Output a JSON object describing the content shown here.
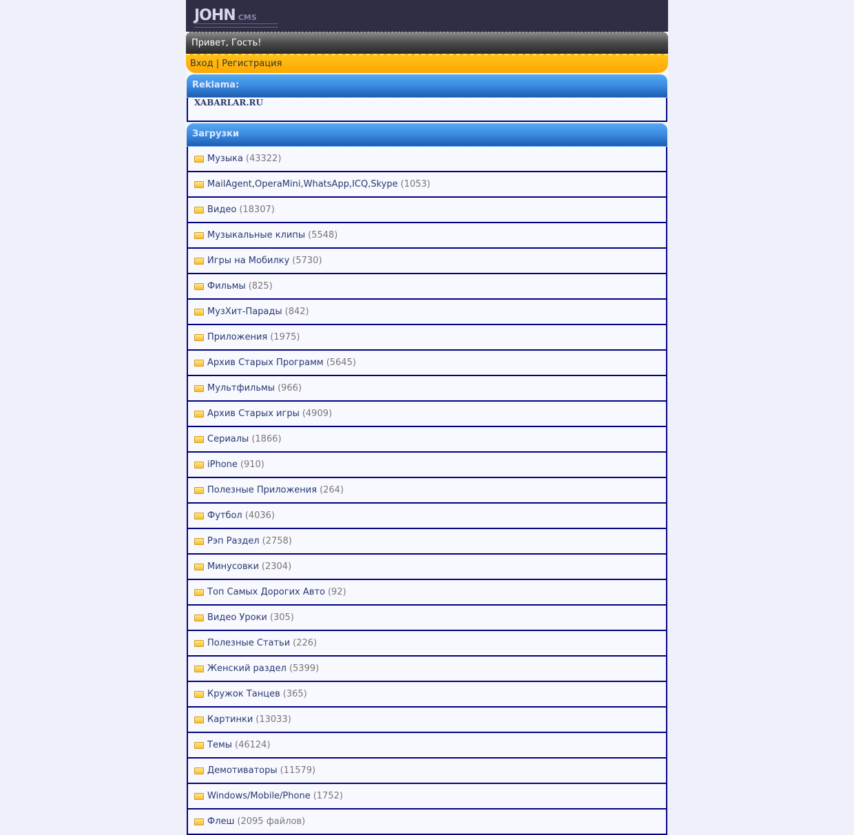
{
  "logo": {
    "text": "JOHN",
    "sub": "CMS"
  },
  "greeting": "Привет, Гость!",
  "auth": {
    "login": "Вход",
    "sep": " | ",
    "register": "Регистрация"
  },
  "ads": {
    "title": "Reklama:",
    "link": "XABARLAR.RU"
  },
  "downloads": {
    "title": "Загрузки",
    "icon": "folder-icon",
    "items": [
      {
        "label": "Музыка",
        "count": "(43322)"
      },
      {
        "label": "MailAgent,OperaMini,WhatsApp,ICQ,Skype",
        "count": "(1053)"
      },
      {
        "label": "Видео",
        "count": "(18307)"
      },
      {
        "label": "Музыкальные клипы",
        "count": "(5548)"
      },
      {
        "label": "Игры на Мобилку",
        "count": "(5730)"
      },
      {
        "label": "Фильмы",
        "count": "(825)"
      },
      {
        "label": "МузХит-Парады",
        "count": "(842)"
      },
      {
        "label": "Приложения",
        "count": "(1975)"
      },
      {
        "label": "Архив Старых Программ",
        "count": "(5645)"
      },
      {
        "label": "Мультфильмы",
        "count": "(966)"
      },
      {
        "label": "Архив Старых игры",
        "count": "(4909)"
      },
      {
        "label": "Сериалы",
        "count": "(1866)"
      },
      {
        "label": "iPhone",
        "count": "(910)"
      },
      {
        "label": "Полезные Приложения",
        "count": "(264)"
      },
      {
        "label": "Футбол",
        "count": "(4036)"
      },
      {
        "label": "Рэп Раздел",
        "count": "(2758)"
      },
      {
        "label": "Минусовки",
        "count": "(2304)"
      },
      {
        "label": "Топ Самых Дорогих Авто",
        "count": "(92)"
      },
      {
        "label": "Видео Уроки",
        "count": "(305)"
      },
      {
        "label": "Полезные Статьи",
        "count": "(226)"
      },
      {
        "label": "Женский раздел",
        "count": "(5399)"
      },
      {
        "label": "Кружок Танцев",
        "count": "(365)"
      },
      {
        "label": "Картинки",
        "count": "(13033)"
      },
      {
        "label": "Темы",
        "count": "(46124)"
      },
      {
        "label": "Демотиваторы",
        "count": "(11579)"
      },
      {
        "label": "Windows/Mobile/Phone",
        "count": "(1752)"
      },
      {
        "label": "Флеш",
        "count": "(2095 файлов)"
      }
    ]
  }
}
